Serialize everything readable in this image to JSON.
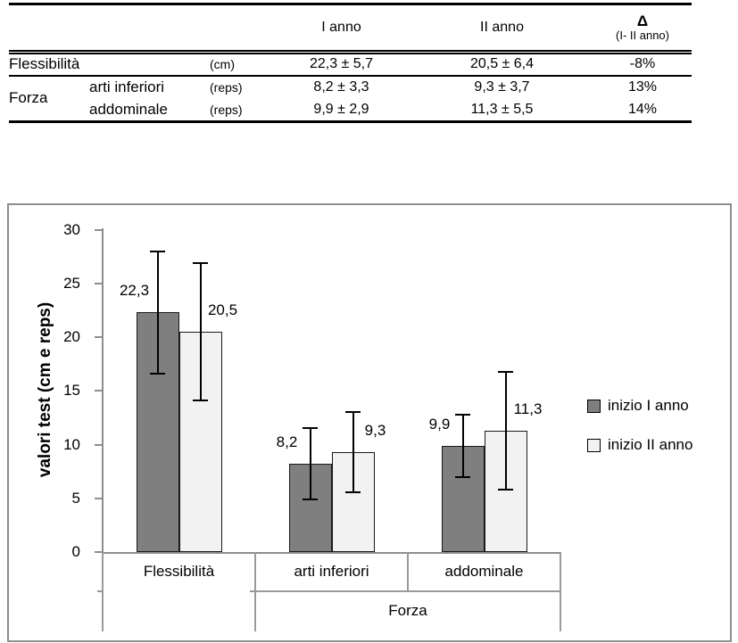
{
  "table": {
    "header": {
      "col_i": "I anno",
      "col_ii": "II anno",
      "delta": "Δ",
      "delta_sub": "(I- II anno)"
    },
    "rows": [
      {
        "group": "Flessibilità",
        "sub": "",
        "unit": "(cm)",
        "i": "22,3 ± 5,7",
        "ii": "20,5 ± 6,4",
        "delta": "-8%"
      },
      {
        "group": "Forza",
        "sub": "arti inferiori",
        "unit": "(reps)",
        "i": "8,2 ± 3,3",
        "ii": "9,3 ± 3,7",
        "delta": "13%"
      },
      {
        "group": "",
        "sub": "addominale",
        "unit": "(reps)",
        "i": "9,9 ± 2,9",
        "ii": "11,3 ± 5,5",
        "delta": "14%"
      }
    ]
  },
  "chart_data": {
    "type": "bar",
    "title": "",
    "ylabel": "valori test (cm e reps)",
    "xlabel": "",
    "ylim": [
      0,
      30
    ],
    "ytick_step": 5,
    "grid": false,
    "legend_position": "right",
    "categories": [
      "Flessibilità",
      "arti inferiori",
      "addominale"
    ],
    "group_axis": [
      {
        "label": "",
        "span": 1
      },
      {
        "label": "Forza",
        "span": 2
      }
    ],
    "series": [
      {
        "name": "inizio I anno",
        "color": "#7f7f7f",
        "values": [
          22.3,
          8.2,
          9.9
        ],
        "errors": [
          5.7,
          3.3,
          2.9
        ],
        "labels": [
          "22,3",
          "8,2",
          "9,9"
        ]
      },
      {
        "name": "inizio II anno",
        "color": "#f2f2f2",
        "values": [
          20.5,
          9.3,
          11.3
        ],
        "errors": [
          6.4,
          3.7,
          5.5
        ],
        "labels": [
          "20,5",
          "9,3",
          "11,3"
        ]
      }
    ],
    "colors": {
      "bar_border": "#1a1a1a",
      "error_bar": "#000000",
      "axis_line": "#8e8e8e",
      "category_line": "#9a9a9a",
      "chart_border": "#8e8e8e",
      "text": "#000000"
    }
  }
}
